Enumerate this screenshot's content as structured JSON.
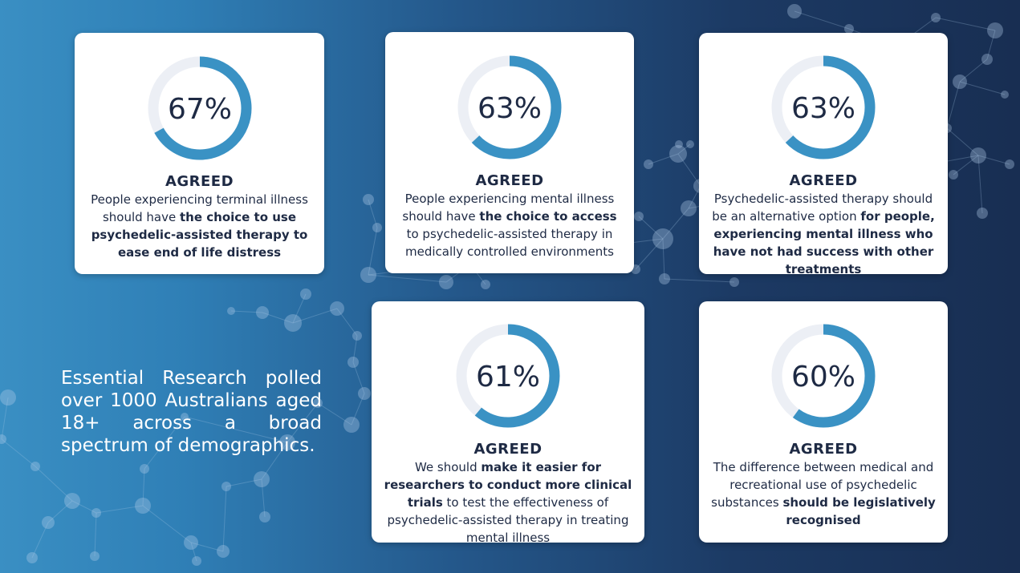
{
  "intro_text": "Essential Research polled over 1000 Australians aged 18+ across a broad spectrum of demographics.",
  "colors": {
    "ring_fill": "#3a92c4",
    "ring_track": "#eceff5",
    "card_text": "#1e2a44"
  },
  "chart_data": [
    {
      "type": "donut",
      "value": 67,
      "value_label": "67%",
      "heading": "AGREED",
      "text_parts": [
        {
          "t": "People experiencing terminal illness should have ",
          "b": false
        },
        {
          "t": "the choice to use psychedelic-assisted therapy to ease end of life distress",
          "b": true
        }
      ]
    },
    {
      "type": "donut",
      "value": 63,
      "value_label": "63%",
      "heading": "AGREED",
      "text_parts": [
        {
          "t": "People experiencing mental illness should have ",
          "b": false
        },
        {
          "t": "the choice to access",
          "b": true
        },
        {
          "t": " to psychedelic-assisted therapy in medically controlled environments",
          "b": false
        }
      ]
    },
    {
      "type": "donut",
      "value": 63,
      "value_label": "63%",
      "heading": "AGREED",
      "text_parts": [
        {
          "t": "Psychedelic-assisted therapy should be an alternative option ",
          "b": false
        },
        {
          "t": "for people, experiencing mental illness who have not had success with other treatments",
          "b": true
        }
      ]
    },
    {
      "type": "donut",
      "value": 61,
      "value_label": "61%",
      "heading": "AGREED",
      "text_parts": [
        {
          "t": "We should ",
          "b": false
        },
        {
          "t": "make it easier for researchers to conduct more clinical trials",
          "b": true
        },
        {
          "t": " to test the effectiveness of psychedelic-assisted therapy in treating mental illness",
          "b": false
        }
      ]
    },
    {
      "type": "donut",
      "value": 60,
      "value_label": "60%",
      "heading": "AGREED",
      "text_parts": [
        {
          "t": "The difference between medical and recreational use of psychedelic substances ",
          "b": false
        },
        {
          "t": "should be legislatively recognised",
          "b": true
        }
      ]
    }
  ]
}
